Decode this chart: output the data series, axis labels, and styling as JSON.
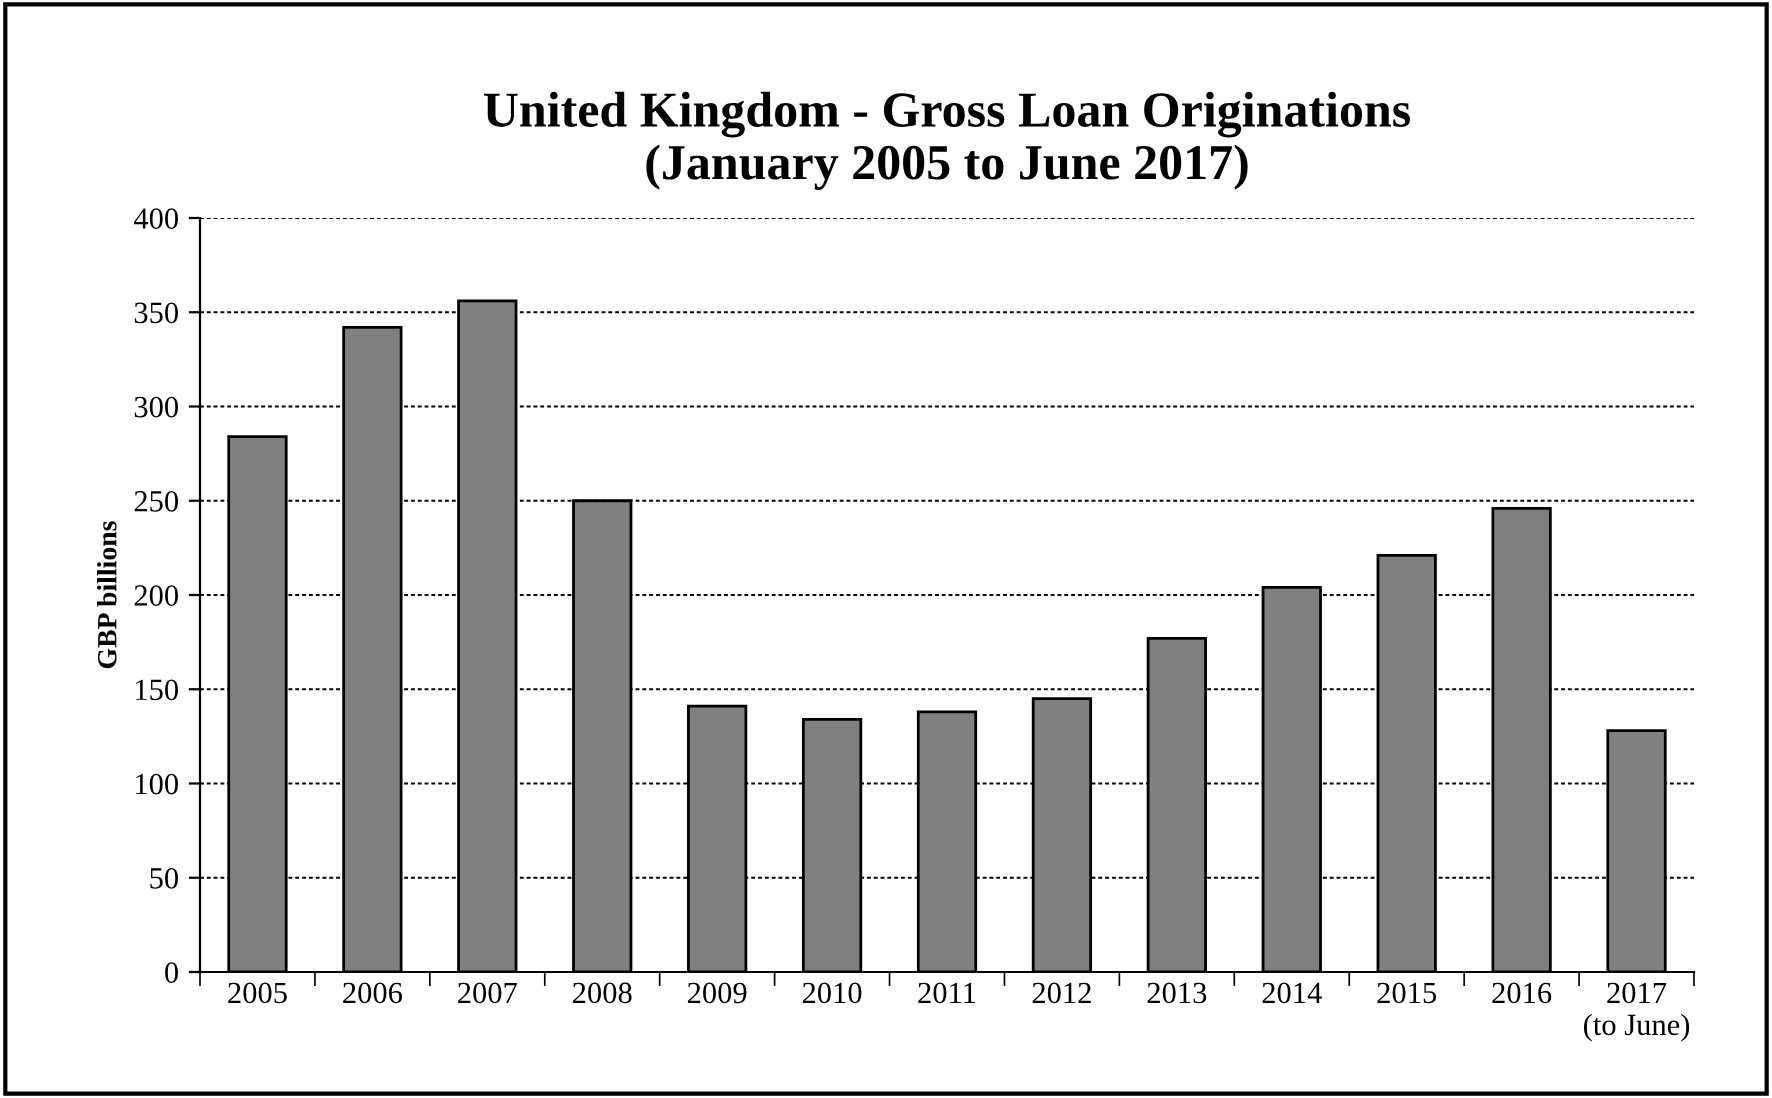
{
  "chart_data": {
    "type": "bar",
    "title": "United Kingdom - Gross Loan Originations\n(January 2005 to June 2017)",
    "ylabel": "GBP billions",
    "categories": [
      "2005",
      "2006",
      "2007",
      "2008",
      "2009",
      "2010",
      "2011",
      "2012",
      "2013",
      "2014",
      "2015",
      "2016",
      "2017\n(to June)"
    ],
    "values": [
      284,
      342,
      356,
      250,
      141,
      134,
      138,
      145,
      177,
      204,
      221,
      246,
      128
    ],
    "color": "#808080",
    "ylim": [
      0,
      400
    ],
    "yticks": [
      0,
      50,
      100,
      150,
      200,
      250,
      300,
      350,
      400
    ],
    "grid": "y"
  }
}
